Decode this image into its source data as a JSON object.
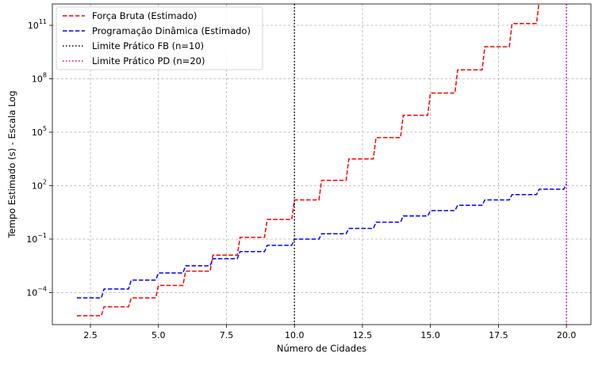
{
  "chart_data": {
    "type": "line",
    "title": "",
    "xlabel": "Número de Cidades",
    "ylabel": "Tempo Estimado (s) - Escala Log",
    "xlim": [
      1.1,
      20.9
    ],
    "ylim_log10": [
      -5.8,
      12.2
    ],
    "yscale": "log",
    "grid": true,
    "legend_position": "top-left",
    "x_ticks": [
      2.5,
      5.0,
      7.5,
      10.0,
      12.5,
      15.0,
      17.5,
      20.0
    ],
    "x_tick_labels": [
      "2.5",
      "5.0",
      "7.5",
      "10.0",
      "12.5",
      "15.0",
      "17.5",
      "20.0"
    ],
    "y_ticks_log10": [
      -4,
      -1,
      2,
      5,
      8,
      11
    ],
    "y_tick_labels": [
      {
        "base": "10",
        "exp": "−4"
      },
      {
        "base": "10",
        "exp": "−1"
      },
      {
        "base": "10",
        "exp": "2"
      },
      {
        "base": "10",
        "exp": "5"
      },
      {
        "base": "10",
        "exp": "8"
      },
      {
        "base": "10",
        "exp": "11"
      }
    ],
    "series": [
      {
        "name": "Força Bruta (Estimado)",
        "color": "#ff0000",
        "style": "dashed",
        "x": [
          2,
          3,
          4,
          5,
          6,
          7,
          8,
          9,
          10,
          11,
          12,
          13,
          14,
          15,
          16,
          17,
          18,
          19,
          20
        ],
        "y_log10": [
          -5.3,
          -4.8,
          -4.3,
          -3.6,
          -2.8,
          -1.9,
          -0.9,
          0.1,
          1.2,
          2.3,
          3.5,
          4.7,
          5.95,
          7.2,
          8.5,
          9.8,
          11.1,
          12.4,
          13.8
        ]
      },
      {
        "name": "Programação Dinâmica (Estimado)",
        "color": "#0000ff",
        "style": "dashed",
        "x": [
          2,
          3,
          4,
          5,
          6,
          7,
          8,
          9,
          10,
          11,
          12,
          13,
          14,
          15,
          16,
          17,
          18,
          19,
          20
        ],
        "y_log10": [
          -4.3,
          -3.8,
          -3.3,
          -2.9,
          -2.5,
          -2.1,
          -1.7,
          -1.35,
          -1.0,
          -0.7,
          -0.4,
          -0.05,
          0.3,
          0.6,
          0.9,
          1.2,
          1.5,
          1.8,
          2.1
        ]
      }
    ],
    "vlines": [
      {
        "name": "Limite Prático FB (n=10)",
        "x": 10,
        "color": "#000000",
        "style": "dotted"
      },
      {
        "name": "Limite Prático PD (n=20)",
        "x": 20,
        "color": "#bf00bf",
        "style": "dotted"
      }
    ]
  }
}
